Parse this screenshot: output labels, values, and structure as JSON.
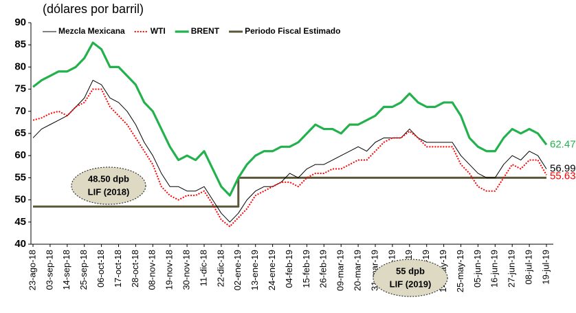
{
  "chart_data": {
    "type": "line",
    "title": "(dólares por barril)",
    "categories": [
      "23-ago-18",
      null,
      "03-sep-18",
      null,
      "14-sep-18",
      null,
      "25-sep-18",
      null,
      "06-oct-18",
      null,
      "17-oct-18",
      null,
      "28-oct-18",
      null,
      "08-nov-18",
      null,
      "19-nov-18",
      null,
      "30-nov-18",
      null,
      "11-dic-18",
      null,
      "22-dic-18",
      null,
      "02-ene-19",
      null,
      "13-ene-19",
      null,
      "24-ene-19",
      null,
      "04-feb-19",
      null,
      "15-feb-19",
      null,
      "26-feb-19",
      null,
      "09-mar-19",
      null,
      "20-mar-19",
      null,
      "31-mar-19",
      null,
      "11-abr-19",
      null,
      "22-abr-19",
      null,
      "03-may-19",
      null,
      "14-may-19",
      null,
      "25-may-19",
      null,
      "05-jun-19",
      null,
      "16-jun-19",
      null,
      "27-jun-19",
      null,
      "08-jul-19",
      null,
      "19-jul-19"
    ],
    "series": [
      {
        "name": "Mezcla Mexicana",
        "color": "#000000",
        "style": "thin",
        "values": [
          64,
          66,
          67,
          68,
          69,
          71,
          73,
          77,
          76,
          73,
          72,
          70,
          67,
          63,
          60,
          56,
          53,
          53,
          52,
          52,
          53,
          50,
          47,
          45,
          47,
          50,
          52,
          53,
          53,
          54,
          56,
          55,
          57,
          58,
          58,
          59,
          60,
          61,
          62,
          61,
          63,
          64,
          64,
          64,
          66,
          64,
          63,
          63,
          63,
          63,
          60,
          58,
          56,
          55,
          55,
          58,
          60,
          59,
          61,
          60,
          56.99
        ]
      },
      {
        "name": "WTI",
        "color": "#ff0000",
        "style": "dotted",
        "values": [
          68,
          68.5,
          69.5,
          70,
          69,
          71,
          72,
          75,
          75,
          71,
          69,
          67,
          64,
          61,
          58,
          53,
          51,
          50,
          51,
          51,
          52,
          49,
          45.5,
          44,
          46,
          48,
          51,
          52,
          53,
          54,
          54,
          53,
          55,
          56,
          56,
          57,
          57,
          58,
          59,
          59,
          61,
          63,
          64,
          64,
          65.5,
          64,
          62,
          62,
          62,
          62,
          58,
          56,
          53,
          52,
          52,
          55,
          58,
          57,
          59,
          59,
          55.63
        ]
      },
      {
        "name": "BRENT",
        "color": "#22b14c",
        "style": "thick",
        "values": [
          75.5,
          77,
          78,
          79,
          79,
          80,
          82,
          85.5,
          84,
          80,
          80,
          78,
          76,
          72,
          70,
          66,
          62,
          59,
          60,
          59,
          61,
          57,
          53,
          51,
          55,
          58,
          60,
          61,
          61,
          62,
          62,
          63,
          65,
          67,
          66,
          66,
          65,
          67,
          67,
          68,
          69,
          71,
          71,
          72,
          74,
          72,
          71,
          71,
          72,
          72,
          69,
          64,
          62,
          61,
          61,
          64,
          66,
          65,
          66,
          65,
          62.47
        ]
      },
      {
        "name": "Periodo Fiscal Estimado",
        "color": "#5b5637",
        "style": "step",
        "values": [
          48.5,
          48.5,
          48.5,
          48.5,
          48.5,
          48.5,
          48.5,
          48.5,
          48.5,
          48.5,
          48.5,
          48.5,
          48.5,
          48.5,
          48.5,
          48.5,
          48.5,
          48.5,
          48.5,
          48.5,
          48.5,
          48.5,
          48.5,
          48.5,
          55,
          55,
          55,
          55,
          55,
          55,
          55,
          55,
          55,
          55,
          55,
          55,
          55,
          55,
          55,
          55,
          55,
          55,
          55,
          55,
          55,
          55,
          55,
          55,
          55,
          55,
          55,
          55,
          55,
          55,
          55,
          55,
          55,
          55,
          55,
          55,
          55
        ]
      }
    ],
    "ylim": [
      40,
      90
    ],
    "yticks": [
      40,
      45,
      50,
      55,
      60,
      65,
      70,
      75,
      80,
      85,
      90
    ],
    "grid": false,
    "annotations": [
      {
        "text": "48.50 dpb",
        "text2": "LIF (2018)"
      },
      {
        "text": "55 dpb",
        "text2": "LIF (2019)"
      }
    ]
  }
}
